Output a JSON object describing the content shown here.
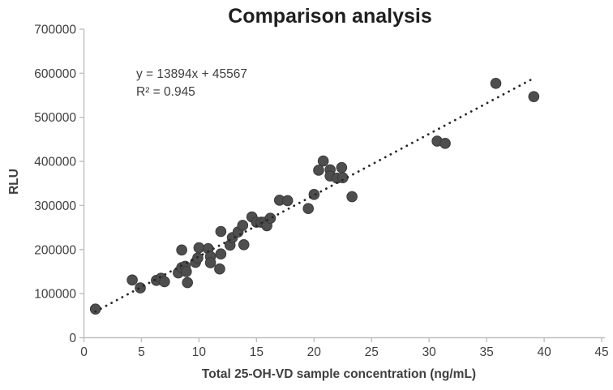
{
  "chart_data": {
    "type": "scatter",
    "title": "Comparison analysis",
    "xlabel": "Total 25-OH-VD sample concentration (ng/mL)",
    "ylabel": "RLU",
    "xlim": [
      0,
      45
    ],
    "ylim": [
      0,
      700000
    ],
    "xticks": [
      0,
      5,
      10,
      15,
      20,
      25,
      30,
      35,
      40,
      45
    ],
    "yticks": [
      0,
      100000,
      200000,
      300000,
      400000,
      500000,
      600000,
      700000
    ],
    "grid": false,
    "legend": false,
    "points": [
      [
        1.0,
        65000
      ],
      [
        4.2,
        131000
      ],
      [
        4.9,
        113000
      ],
      [
        6.3,
        130000
      ],
      [
        6.7,
        135000
      ],
      [
        7.0,
        127000
      ],
      [
        8.2,
        147000
      ],
      [
        8.5,
        199000
      ],
      [
        8.5,
        159000
      ],
      [
        8.8,
        162000
      ],
      [
        8.9,
        150000
      ],
      [
        9.0,
        125000
      ],
      [
        9.7,
        171000
      ],
      [
        9.9,
        181000
      ],
      [
        10.0,
        204000
      ],
      [
        10.8,
        202000
      ],
      [
        11.0,
        184000
      ],
      [
        11.0,
        170000
      ],
      [
        11.9,
        241000
      ],
      [
        11.9,
        190000
      ],
      [
        11.8,
        156000
      ],
      [
        12.7,
        210000
      ],
      [
        12.9,
        227000
      ],
      [
        13.4,
        240000
      ],
      [
        13.8,
        255000
      ],
      [
        13.9,
        211000
      ],
      [
        14.6,
        274000
      ],
      [
        15.0,
        262000
      ],
      [
        15.4,
        262000
      ],
      [
        15.7,
        262000
      ],
      [
        15.9,
        254000
      ],
      [
        16.2,
        271000
      ],
      [
        17.0,
        312000
      ],
      [
        17.7,
        311000
      ],
      [
        19.5,
        293000
      ],
      [
        20.0,
        325000
      ],
      [
        20.4,
        380000
      ],
      [
        20.8,
        401000
      ],
      [
        21.4,
        381000
      ],
      [
        21.4,
        367000
      ],
      [
        22.0,
        362000
      ],
      [
        22.4,
        386000
      ],
      [
        22.5,
        363000
      ],
      [
        23.3,
        320000
      ],
      [
        30.7,
        446000
      ],
      [
        31.4,
        441000
      ],
      [
        35.8,
        577000
      ],
      [
        39.1,
        547000
      ]
    ],
    "trendline": {
      "slope": 13894,
      "intercept": 45567,
      "x_start": 1.0,
      "x_end": 38.9,
      "style": "dotted",
      "equation_label": "y = 13894x + 45567",
      "r_squared_label": "R² = 0.945"
    },
    "colors": {
      "point": "#4e4e4e",
      "point_edge": "#3a3a3a",
      "trendline": "#262626",
      "axis": "#bfbfbf",
      "tick_text": "#3f3f3f",
      "title_text": "#1f1f1f",
      "background": "#ffffff"
    }
  }
}
